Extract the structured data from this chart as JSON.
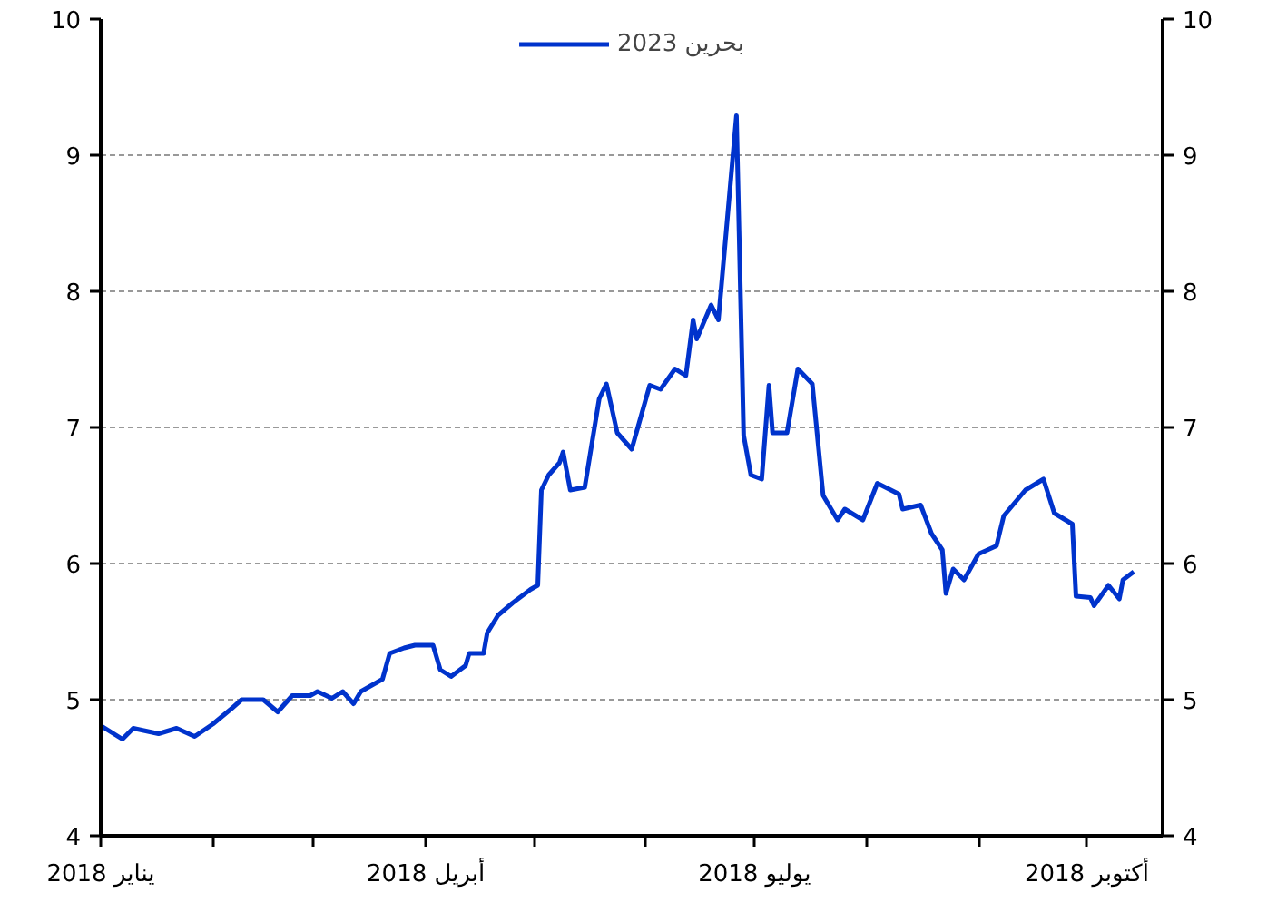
{
  "chart_data": {
    "type": "line",
    "x": [
      "2018-01-01",
      "2018-01-07",
      "2018-01-10",
      "2018-01-17",
      "2018-01-22",
      "2018-01-27",
      "2018-02-01",
      "2018-02-06",
      "2018-02-09",
      "2018-02-15",
      "2018-02-19",
      "2018-02-23",
      "2018-02-28",
      "2018-03-02",
      "2018-03-06",
      "2018-03-09",
      "2018-03-12",
      "2018-03-14",
      "2018-03-20",
      "2018-03-22",
      "2018-03-26",
      "2018-03-29",
      "2018-04-03",
      "2018-04-05",
      "2018-04-08",
      "2018-04-12",
      "2018-04-13",
      "2018-04-17",
      "2018-04-18",
      "2018-04-21",
      "2018-04-25",
      "2018-04-30",
      "2018-05-02",
      "2018-05-03",
      "2018-05-05",
      "2018-05-08",
      "2018-05-09",
      "2018-05-11",
      "2018-05-15",
      "2018-05-19",
      "2018-05-21",
      "2018-05-24",
      "2018-05-28",
      "2018-06-02",
      "2018-06-05",
      "2018-06-09",
      "2018-06-12",
      "2018-06-14",
      "2018-06-15",
      "2018-06-19",
      "2018-06-21",
      "2018-06-26",
      "2018-06-28",
      "2018-06-30",
      "2018-07-03",
      "2018-07-05",
      "2018-07-06",
      "2018-07-10",
      "2018-07-13",
      "2018-07-17",
      "2018-07-20",
      "2018-07-24",
      "2018-07-26",
      "2018-07-31",
      "2018-08-04",
      "2018-08-10",
      "2018-08-11",
      "2018-08-16",
      "2018-08-19",
      "2018-08-22",
      "2018-08-23",
      "2018-08-25",
      "2018-08-28",
      "2018-09-01",
      "2018-09-06",
      "2018-09-08",
      "2018-09-14",
      "2018-09-19",
      "2018-09-22",
      "2018-09-27",
      "2018-09-28",
      "2018-10-02",
      "2018-10-03",
      "2018-10-07",
      "2018-10-10",
      "2018-10-11",
      "2018-10-14"
    ],
    "series": [
      {
        "name": "بحرين 2023",
        "color": "#0033cc",
        "values": [
          4.81,
          4.71,
          4.79,
          4.75,
          4.79,
          4.73,
          4.82,
          4.93,
          5.0,
          5.0,
          4.91,
          5.03,
          5.03,
          5.06,
          5.01,
          5.06,
          4.97,
          5.06,
          5.15,
          5.34,
          5.38,
          5.4,
          5.4,
          5.22,
          5.17,
          5.25,
          5.34,
          5.34,
          5.49,
          5.62,
          5.71,
          5.81,
          5.84,
          6.54,
          6.65,
          6.74,
          6.82,
          6.54,
          6.56,
          7.21,
          7.32,
          6.96,
          6.84,
          7.31,
          7.28,
          7.43,
          7.38,
          7.79,
          7.65,
          7.9,
          7.79,
          9.29,
          6.94,
          6.65,
          6.62,
          7.31,
          6.96,
          6.96,
          7.43,
          7.32,
          6.5,
          6.32,
          6.4,
          6.32,
          6.59,
          6.51,
          6.4,
          6.43,
          6.22,
          6.1,
          5.78,
          5.96,
          5.88,
          6.07,
          6.13,
          6.35,
          6.54,
          6.62,
          6.37,
          6.29,
          5.76,
          5.75,
          5.69,
          5.84,
          5.74,
          5.88,
          5.94
        ]
      }
    ],
    "xlim": [
      "2018-01-01",
      "2018-10-22"
    ],
    "xticks": [
      {
        "value": "2018-01-01",
        "label": "يناير 2018"
      },
      {
        "value": "2018-02-01",
        "label": null
      },
      {
        "value": "2018-03-01",
        "label": null
      },
      {
        "value": "2018-04-01",
        "label": "أبريل 2018"
      },
      {
        "value": "2018-05-01",
        "label": null
      },
      {
        "value": "2018-06-01",
        "label": null
      },
      {
        "value": "2018-07-01",
        "label": "يوليو 2018"
      },
      {
        "value": "2018-08-01",
        "label": null
      },
      {
        "value": "2018-09-01",
        "label": null
      },
      {
        "value": "2018-10-01",
        "label": "أكتوبر 2018"
      }
    ],
    "ylim": [
      4,
      10
    ],
    "yticks": [
      4,
      5,
      6,
      7,
      8,
      9,
      10
    ],
    "y2lim": [
      4,
      10
    ],
    "y2ticks": [
      4,
      5,
      6,
      7,
      8,
      9,
      10
    ],
    "grid": "y",
    "legend": "top",
    "line_style": "solid",
    "marker": "none"
  }
}
